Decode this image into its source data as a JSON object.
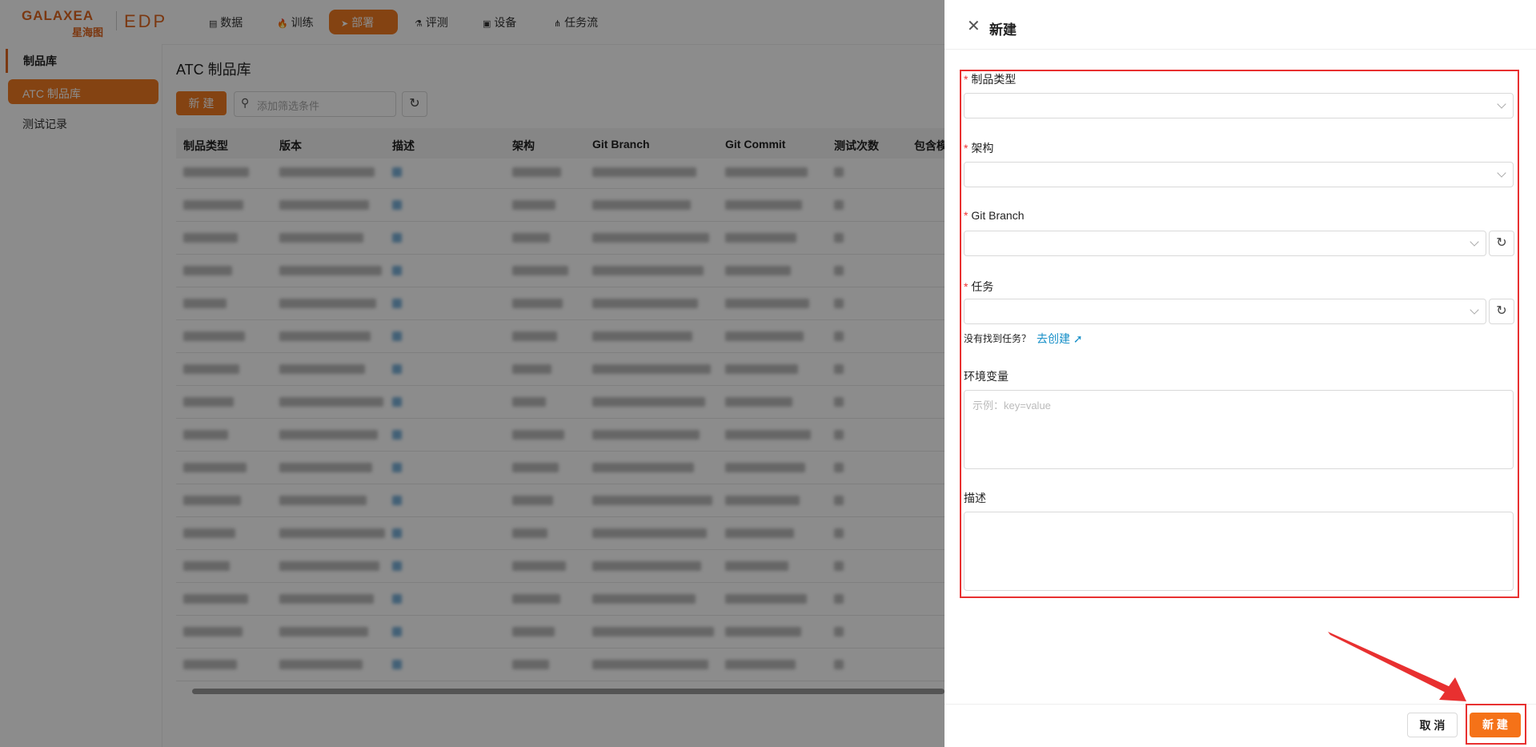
{
  "nav": {
    "logo": "GALAXEA",
    "logo_cn": "星海图",
    "product": "EDP",
    "items": [
      "数据",
      "训练",
      "部署",
      "评测",
      "设备",
      "任务流"
    ]
  },
  "sidebar": {
    "section": "制品库",
    "items": [
      "ATC 制品库",
      "测试记录"
    ]
  },
  "main": {
    "title": "ATC 制品库",
    "new_button": "新 建",
    "search_placeholder": "添加筛选条件",
    "table": {
      "headers": [
        "制品类型",
        "版本",
        "描述",
        "架构",
        "Git Branch",
        "Git Commit",
        "测试次数",
        "包含模"
      ]
    }
  },
  "drawer": {
    "title": "新建",
    "fields": [
      {
        "label": "制品类型",
        "required": "*"
      },
      {
        "label": "架构",
        "required": "*"
      },
      {
        "label": "Git Branch",
        "required": "*"
      },
      {
        "label": "任务",
        "required": "*"
      }
    ],
    "hint": "没有找到任务？",
    "hint_link": "去创建",
    "env_label": "环境变量",
    "env_placeholder": "示例：key=value",
    "desc_label": "描述",
    "cancel": "取 消",
    "submit": "新 建"
  }
}
